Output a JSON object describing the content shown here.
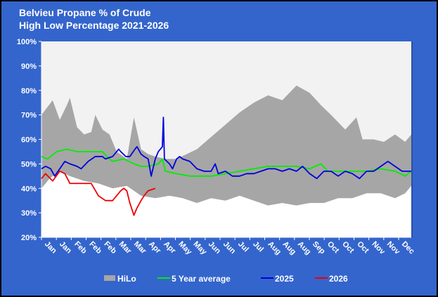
{
  "chart_data": {
    "type": "area",
    "title": "Belvieu Propane % of Crude",
    "subtitle": "High Low Percentage 2021-2026",
    "ylim": [
      20,
      100
    ],
    "yticks": [
      "20%",
      "30%",
      "40%",
      "50%",
      "60%",
      "70%",
      "80%",
      "90%",
      "100%"
    ],
    "xticks": [
      "Jan",
      "Jan",
      "Feb",
      "Feb",
      "Feb",
      "Mar",
      "Mar",
      "Apr",
      "Apr",
      "May",
      "May",
      "Jun",
      "Jun",
      "Jul",
      "Jul",
      "Aug",
      "Aug",
      "Aug",
      "Sep",
      "Oct",
      "Oct",
      "Oct",
      "Nov",
      "Nov",
      "Dec"
    ],
    "legend_position": "bottom",
    "colors": {
      "hilo": "#a6a6a6",
      "above": "#f2f2f2",
      "avg": "#00ee00",
      "y2025": "#0000dd",
      "y2026": "#ee0000",
      "background": "#3465cc"
    },
    "hilo": {
      "name": "HiLo",
      "high": [
        [
          "01-01",
          70
        ],
        [
          "01-12",
          76
        ],
        [
          "01-19",
          68
        ],
        [
          "01-26",
          74
        ],
        [
          "01-29",
          77
        ],
        [
          "02-05",
          65
        ],
        [
          "02-12",
          62
        ],
        [
          "02-19",
          63
        ],
        [
          "02-23",
          70
        ],
        [
          "03-02",
          64
        ],
        [
          "03-09",
          62
        ],
        [
          "03-16",
          55
        ],
        [
          "03-26",
          52
        ],
        [
          "04-02",
          69
        ],
        [
          "04-09",
          56
        ],
        [
          "04-16",
          54
        ],
        [
          "04-23",
          53
        ],
        [
          "05-03",
          52
        ],
        [
          "05-14",
          52
        ],
        [
          "05-24",
          54
        ],
        [
          "06-03",
          56
        ],
        [
          "06-17",
          61
        ],
        [
          "07-01",
          66
        ],
        [
          "07-15",
          71
        ],
        [
          "07-29",
          75
        ],
        [
          "08-12",
          78
        ],
        [
          "08-26",
          76
        ],
        [
          "09-09",
          82
        ],
        [
          "09-22",
          79
        ],
        [
          "10-03",
          74
        ],
        [
          "10-13",
          70
        ],
        [
          "10-27",
          64
        ],
        [
          "11-07",
          69
        ],
        [
          "11-13",
          60
        ],
        [
          "11-24",
          60
        ],
        [
          "12-04",
          59
        ],
        [
          "12-15",
          62
        ],
        [
          "12-25",
          59
        ],
        [
          "12-31",
          62
        ]
      ],
      "low": [
        [
          "01-01",
          40
        ],
        [
          "01-09",
          44
        ],
        [
          "01-19",
          47
        ],
        [
          "01-29",
          45
        ],
        [
          "02-12",
          43
        ],
        [
          "02-26",
          42
        ],
        [
          "03-12",
          40
        ],
        [
          "03-26",
          41
        ],
        [
          "04-09",
          37
        ],
        [
          "04-23",
          36
        ],
        [
          "05-07",
          37
        ],
        [
          "05-20",
          36
        ],
        [
          "06-03",
          34
        ],
        [
          "06-17",
          36
        ],
        [
          "07-01",
          35
        ],
        [
          "07-15",
          37
        ],
        [
          "07-29",
          35
        ],
        [
          "08-12",
          33
        ],
        [
          "08-26",
          34
        ],
        [
          "09-09",
          33
        ],
        [
          "09-22",
          34
        ],
        [
          "10-06",
          34
        ],
        [
          "10-20",
          36
        ],
        [
          "11-03",
          36
        ],
        [
          "11-17",
          38
        ],
        [
          "12-01",
          38
        ],
        [
          "12-15",
          36
        ],
        [
          "12-25",
          38
        ],
        [
          "12-31",
          41
        ]
      ]
    },
    "series": [
      {
        "name": "5 Year average",
        "color": "#00ee00",
        "points": [
          [
            "01-01",
            53
          ],
          [
            "01-07",
            52
          ],
          [
            "01-16",
            55
          ],
          [
            "01-26",
            56
          ],
          [
            "02-05",
            55
          ],
          [
            "02-19",
            55
          ],
          [
            "03-02",
            55
          ],
          [
            "03-09",
            52
          ],
          [
            "03-12",
            51
          ],
          [
            "03-23",
            52
          ],
          [
            "04-02",
            50
          ],
          [
            "04-09",
            49
          ],
          [
            "04-16",
            49
          ],
          [
            "04-26",
            50
          ],
          [
            "04-30",
            52
          ],
          [
            "05-03",
            47
          ],
          [
            "05-14",
            46
          ],
          [
            "05-27",
            45
          ],
          [
            "06-17",
            45
          ],
          [
            "07-01",
            46
          ],
          [
            "07-15",
            47
          ],
          [
            "07-29",
            48
          ],
          [
            "08-12",
            49
          ],
          [
            "08-26",
            49
          ],
          [
            "09-09",
            49
          ],
          [
            "09-22",
            48
          ],
          [
            "10-03",
            50
          ],
          [
            "10-10",
            47
          ],
          [
            "10-20",
            47
          ],
          [
            "11-03",
            47
          ],
          [
            "11-17",
            47
          ],
          [
            "12-01",
            48
          ],
          [
            "12-15",
            47
          ],
          [
            "12-25",
            45
          ],
          [
            "12-31",
            47
          ]
        ]
      },
      {
        "name": "2025",
        "color": "#0000dd",
        "points": [
          [
            "01-01",
            48
          ],
          [
            "01-05",
            49
          ],
          [
            "01-10",
            48
          ],
          [
            "01-14",
            45
          ],
          [
            "01-19",
            48
          ],
          [
            "01-24",
            51
          ],
          [
            "01-29",
            50
          ],
          [
            "02-05",
            49
          ],
          [
            "02-09",
            48
          ],
          [
            "02-16",
            51
          ],
          [
            "02-23",
            53
          ],
          [
            "03-02",
            53
          ],
          [
            "03-05",
            52
          ],
          [
            "03-12",
            53
          ],
          [
            "03-18",
            56
          ],
          [
            "03-20",
            55
          ],
          [
            "03-25",
            53
          ],
          [
            "03-29",
            53
          ],
          [
            "04-03",
            56
          ],
          [
            "04-05",
            57
          ],
          [
            "04-09",
            54
          ],
          [
            "04-12",
            53
          ],
          [
            "04-16",
            52
          ],
          [
            "04-19",
            45
          ],
          [
            "04-23",
            52
          ],
          [
            "04-26",
            55
          ],
          [
            "04-30",
            57
          ],
          [
            "05-01",
            69
          ],
          [
            "05-02",
            52
          ],
          [
            "05-07",
            50
          ],
          [
            "05-10",
            48
          ],
          [
            "05-14",
            52
          ],
          [
            "05-17",
            53
          ],
          [
            "05-20",
            52
          ],
          [
            "05-27",
            51
          ],
          [
            "06-03",
            48
          ],
          [
            "06-10",
            47
          ],
          [
            "06-17",
            47
          ],
          [
            "06-21",
            50
          ],
          [
            "06-24",
            46
          ],
          [
            "07-01",
            47
          ],
          [
            "07-08",
            45
          ],
          [
            "07-15",
            45
          ],
          [
            "07-22",
            46
          ],
          [
            "07-29",
            46
          ],
          [
            "08-05",
            47
          ],
          [
            "08-12",
            48
          ],
          [
            "08-19",
            48
          ],
          [
            "08-26",
            47
          ],
          [
            "09-02",
            48
          ],
          [
            "09-09",
            47
          ],
          [
            "09-15",
            49
          ],
          [
            "09-22",
            46
          ],
          [
            "09-29",
            44
          ],
          [
            "10-06",
            47
          ],
          [
            "10-13",
            47
          ],
          [
            "10-20",
            45
          ],
          [
            "10-27",
            47
          ],
          [
            "11-03",
            46
          ],
          [
            "11-10",
            44
          ],
          [
            "11-17",
            47
          ],
          [
            "11-24",
            47
          ],
          [
            "12-01",
            49
          ],
          [
            "12-08",
            51
          ],
          [
            "12-15",
            49
          ],
          [
            "12-22",
            47
          ],
          [
            "12-31",
            47
          ]
        ]
      },
      {
        "name": "2026",
        "color": "#ee0000",
        "points": [
          [
            "01-01",
            44
          ],
          [
            "01-05",
            46
          ],
          [
            "01-12",
            43
          ],
          [
            "01-19",
            47
          ],
          [
            "01-24",
            46
          ],
          [
            "01-29",
            42
          ],
          [
            "02-05",
            42
          ],
          [
            "02-16",
            42
          ],
          [
            "02-19",
            42
          ],
          [
            "02-26",
            37
          ],
          [
            "03-05",
            35
          ],
          [
            "03-12",
            35
          ],
          [
            "03-20",
            39
          ],
          [
            "03-23",
            40
          ],
          [
            "03-26",
            39
          ],
          [
            "03-29",
            34
          ],
          [
            "04-02",
            29
          ],
          [
            "04-05",
            32
          ],
          [
            "04-09",
            35
          ],
          [
            "04-12",
            37
          ],
          [
            "04-16",
            39
          ],
          [
            "04-23",
            40
          ]
        ]
      }
    ]
  }
}
